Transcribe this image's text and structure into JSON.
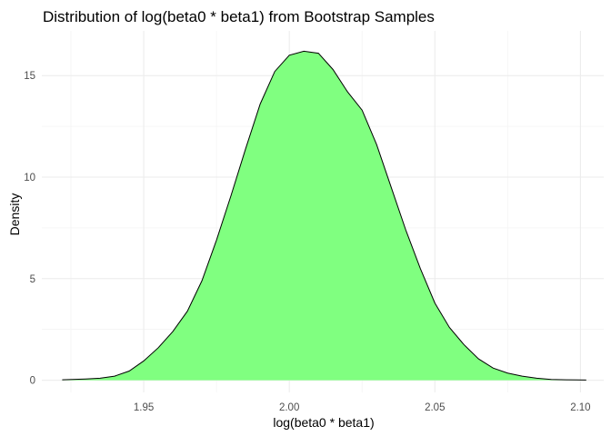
{
  "chart_data": {
    "type": "area",
    "title": "Distribution of log(beta0 * beta1) from Bootstrap Samples",
    "xlabel": "log(beta0 * beta1)",
    "ylabel": "Density",
    "xlim": [
      1.915,
      2.108
    ],
    "ylim": [
      -0.6,
      17.2
    ],
    "x_ticks": [
      1.95,
      2.0,
      2.05,
      2.1
    ],
    "x_tick_labels": [
      "1.95",
      "2.00",
      "2.05",
      "2.10"
    ],
    "y_ticks": [
      0,
      5,
      10,
      15
    ],
    "y_tick_labels": [
      "0",
      "5",
      "10",
      "15"
    ],
    "grid": true,
    "legend": "none",
    "fill_color": "#80ff80",
    "line_color": "#000000",
    "series": [
      {
        "x": [
          1.922,
          1.93,
          1.935,
          1.94,
          1.945,
          1.95,
          1.955,
          1.96,
          1.965,
          1.97,
          1.975,
          1.98,
          1.985,
          1.99,
          1.995,
          2.0,
          2.005,
          2.01,
          2.015,
          2.02,
          2.025,
          2.03,
          2.035,
          2.04,
          2.045,
          2.05,
          2.055,
          2.06,
          2.065,
          2.07,
          2.075,
          2.08,
          2.085,
          2.09,
          2.095,
          2.102
        ],
        "y": [
          0.02,
          0.06,
          0.1,
          0.2,
          0.45,
          0.95,
          1.6,
          2.4,
          3.4,
          4.9,
          6.9,
          9.1,
          11.4,
          13.6,
          15.2,
          16.0,
          16.2,
          16.1,
          15.3,
          14.2,
          13.3,
          11.6,
          9.5,
          7.4,
          5.5,
          3.8,
          2.6,
          1.75,
          1.05,
          0.6,
          0.35,
          0.2,
          0.1,
          0.04,
          0.02,
          0.01
        ]
      }
    ]
  }
}
